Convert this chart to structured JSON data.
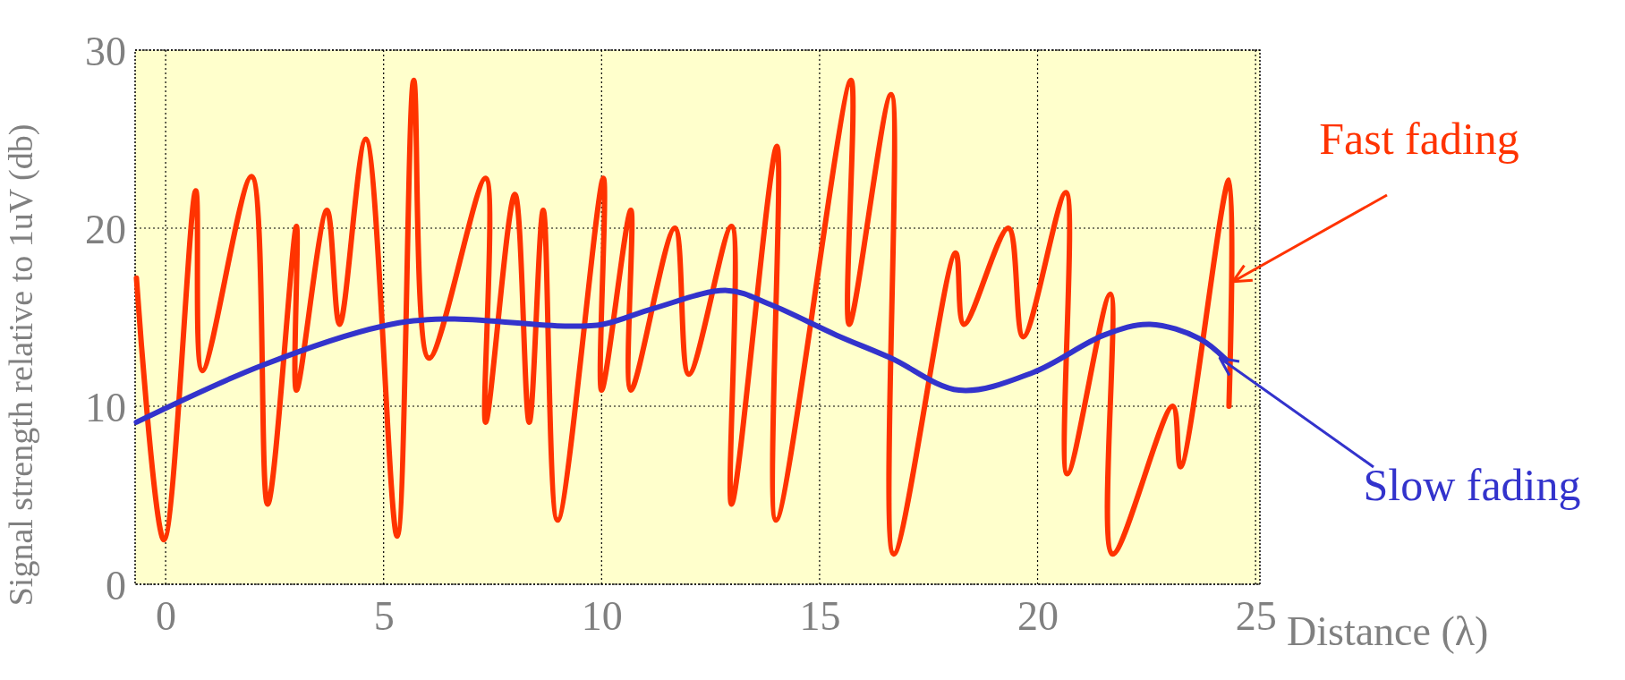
{
  "chart_data": {
    "type": "line",
    "xlabel": "Distance (λ)",
    "ylabel": "Signal strength relative to 1uV (db)",
    "xlim": [
      -0.7,
      25.1
    ],
    "xticks": [
      0,
      5,
      10,
      15,
      20,
      25
    ],
    "ylim": [
      0,
      30
    ],
    "yticks": [
      0,
      10,
      20,
      30
    ],
    "grid": true,
    "line_style": "solid",
    "series": [
      {
        "color": "#ff3300",
        "x": [
          -0.67,
          -0.04,
          0.69,
          0.84,
          1.97,
          2.34,
          3.0,
          3.0,
          3.7,
          3.99,
          4.59,
          5.31,
          5.69,
          6.04,
          7.34,
          7.34,
          8.01,
          8.34,
          8.66,
          8.99,
          10.04,
          10.0,
          10.67,
          10.67,
          11.68,
          12.0,
          12.98,
          12.98,
          14.02,
          14.0,
          15.72,
          15.68,
          16.64,
          16.7,
          18.12,
          18.31,
          19.33,
          19.67,
          20.65,
          20.68,
          21.67,
          21.72,
          23.1,
          23.28,
          24.39,
          24.39
        ],
        "values": [
          17.2,
          2.5,
          22.1,
          12.0,
          22.9,
          4.5,
          20.1,
          10.9,
          21.0,
          14.6,
          25.0,
          2.7,
          28.3,
          12.7,
          22.8,
          9.1,
          21.9,
          9.1,
          21.0,
          3.6,
          22.8,
          10.9,
          21.0,
          10.9,
          20.0,
          11.8,
          20.1,
          4.5,
          24.6,
          3.6,
          28.3,
          14.6,
          27.5,
          1.7,
          18.6,
          14.6,
          20.0,
          13.9,
          22.0,
          6.2,
          16.3,
          1.7,
          10.0,
          6.6,
          22.7,
          10.0
        ]
      },
      {
        "color": "#3333cc",
        "x": [
          -0.67,
          2.22,
          4.98,
          6.4,
          9.16,
          10.03,
          11.2,
          12.88,
          13.88,
          15.38,
          16.64,
          18.2,
          19.9,
          21.53,
          22.58,
          23.71,
          24.33
        ],
        "values": [
          9.1,
          12.3,
          14.5,
          14.9,
          14.5,
          14.6,
          15.5,
          16.5,
          15.7,
          14.0,
          12.7,
          10.9,
          11.9,
          14.0,
          14.6,
          13.8,
          12.6
        ]
      }
    ],
    "annotations": [
      {
        "text": "Fast fading",
        "x": 24.4,
        "y": 17.0
      },
      {
        "text": "Slow fading",
        "x": 24.1,
        "y": 12.7
      }
    ]
  }
}
